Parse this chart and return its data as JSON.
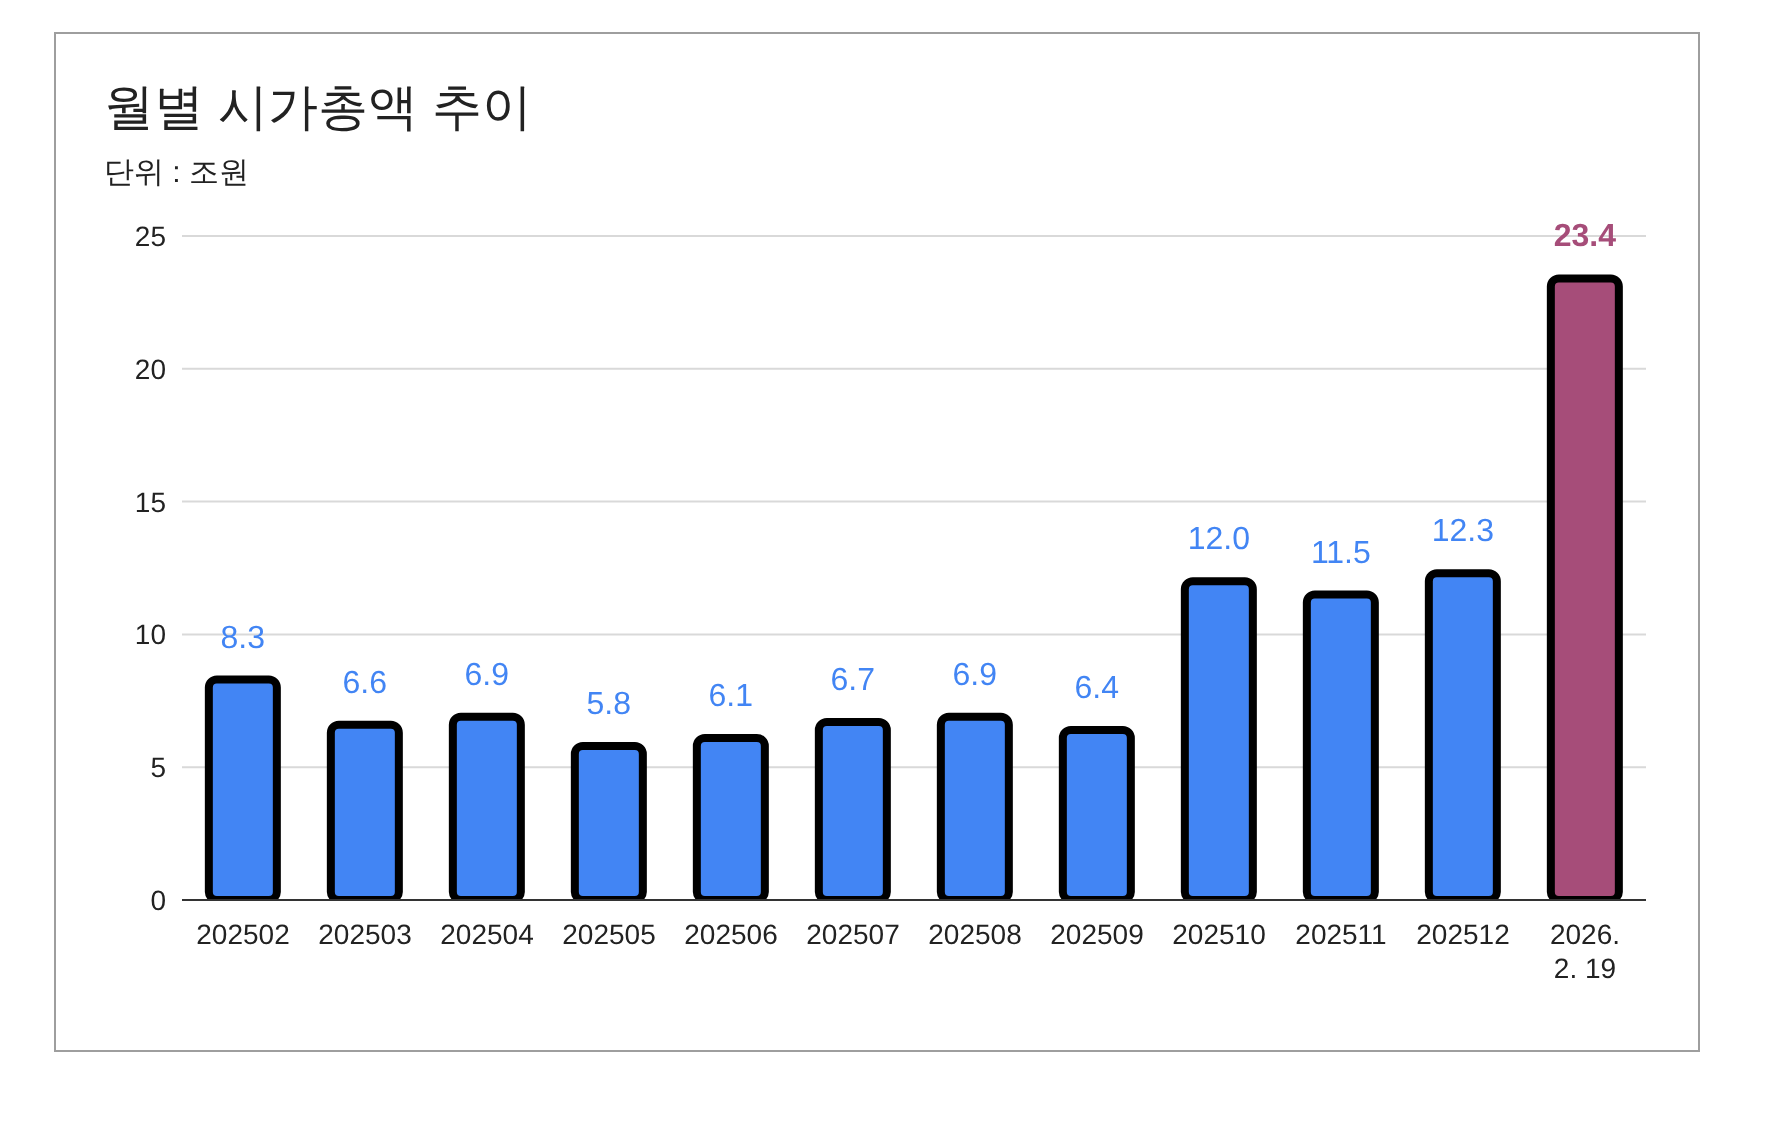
{
  "chart_data": {
    "type": "bar",
    "title": "월별 시가총액 추이",
    "subtitle": "단위 : 조원",
    "categories": [
      "202502",
      "202503",
      "202504",
      "202505",
      "202506",
      "202507",
      "202508",
      "202509",
      "202510",
      "202511",
      "202512",
      "2026. 2. 19"
    ],
    "values": [
      8.3,
      6.6,
      6.9,
      5.8,
      6.1,
      6.7,
      6.9,
      6.4,
      12.0,
      11.5,
      12.3,
      23.4
    ],
    "colors": [
      "#4285f4",
      "#4285f4",
      "#4285f4",
      "#4285f4",
      "#4285f4",
      "#4285f4",
      "#4285f4",
      "#4285f4",
      "#4285f4",
      "#4285f4",
      "#4285f4",
      "#a64d79"
    ],
    "value_labels": [
      "8.3",
      "6.6",
      "6.9",
      "5.8",
      "6.1",
      "6.7",
      "6.9",
      "6.4",
      "12.0",
      "11.5",
      "12.3",
      "23.4"
    ],
    "ylim": [
      0,
      25
    ],
    "yticks": [
      0,
      5,
      10,
      15,
      20,
      25
    ],
    "grid": "y",
    "legend": false
  }
}
